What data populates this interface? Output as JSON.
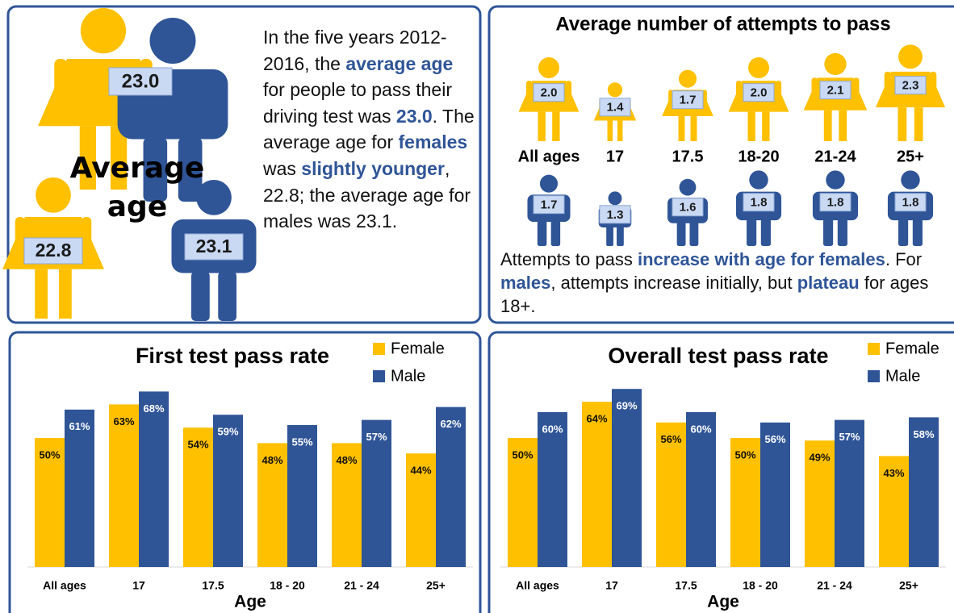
{
  "average_age": {
    "title": "Average age",
    "overall": "23.0",
    "female": "22.8",
    "male": "23.1",
    "text": [
      {
        "text": "In the five years 2012-2016, the "
      },
      {
        "text": "average age",
        "highlight": true
      },
      {
        "text": " for people to pass their driving test was "
      },
      {
        "text": "23.0",
        "highlight": true
      },
      {
        "text": ". The average age for "
      },
      {
        "text": "females",
        "highlight": true
      },
      {
        "text": " was "
      },
      {
        "text": "slightly younger",
        "highlight": true
      },
      {
        "text": ", 22.8; the average age for males was 23.1."
      }
    ]
  },
  "attempts": {
    "title": "Average number of attempts to pass",
    "categories": [
      "All ages",
      "17",
      "17.5",
      "18-20",
      "21-24",
      "25+"
    ],
    "female": {
      "color": "#FFC000",
      "values": [
        2.0,
        1.4,
        1.7,
        2.0,
        2.1,
        2.3
      ],
      "value_labels": [
        "2.0",
        "1.4",
        "1.7",
        "2.0",
        "2.1",
        "2.3"
      ]
    },
    "male": {
      "color": "#2F5597",
      "values": [
        1.7,
        1.3,
        1.6,
        1.8,
        1.8,
        1.8
      ],
      "value_labels": [
        "1.7",
        "1.3",
        "1.6",
        "1.8",
        "1.8",
        "1.8"
      ]
    },
    "text": [
      {
        "text": "Attempts to pass "
      },
      {
        "text": "increase with age for females",
        "highlight": true
      },
      {
        "text": ". For "
      },
      {
        "text": "males",
        "highlight": true
      },
      {
        "text": ", attempts increase initially, but "
      },
      {
        "text": "plateau",
        "highlight": true
      },
      {
        "text": " for ages 18+."
      }
    ]
  },
  "chart_data": [
    {
      "type": "bar",
      "title": "First test pass rate",
      "xlabel": "Age",
      "categories": [
        "All ages",
        "17",
        "17.5",
        "18 - 20",
        "21 - 24",
        "25+"
      ],
      "series": [
        {
          "name": "Female",
          "color": "#FFC000",
          "values": [
            50,
            63,
            54,
            48,
            48,
            44
          ],
          "value_labels": [
            "50%",
            "63%",
            "54%",
            "48%",
            "48%",
            "44%"
          ]
        },
        {
          "name": "Male",
          "color": "#2F5597",
          "values": [
            61,
            68,
            59,
            55,
            57,
            62
          ],
          "value_labels": [
            "61%",
            "68%",
            "59%",
            "55%",
            "57%",
            "62%"
          ]
        }
      ],
      "ylim": [
        0,
        75
      ],
      "legend": "upper right"
    },
    {
      "type": "bar",
      "title": "Overall test pass rate",
      "xlabel": "Age",
      "categories": [
        "All ages",
        "17",
        "17.5",
        "18 - 20",
        "21 - 24",
        "25+"
      ],
      "series": [
        {
          "name": "Female",
          "color": "#FFC000",
          "values": [
            50,
            64,
            56,
            50,
            49,
            43
          ],
          "value_labels": [
            "50%",
            "64%",
            "56%",
            "50%",
            "49%",
            "43%"
          ]
        },
        {
          "name": "Male",
          "color": "#2F5597",
          "values": [
            60,
            69,
            60,
            56,
            57,
            58
          ],
          "value_labels": [
            "60%",
            "69%",
            "60%",
            "56%",
            "57%",
            "58%"
          ]
        }
      ],
      "ylim": [
        0,
        75
      ],
      "legend": "upper right"
    }
  ]
}
